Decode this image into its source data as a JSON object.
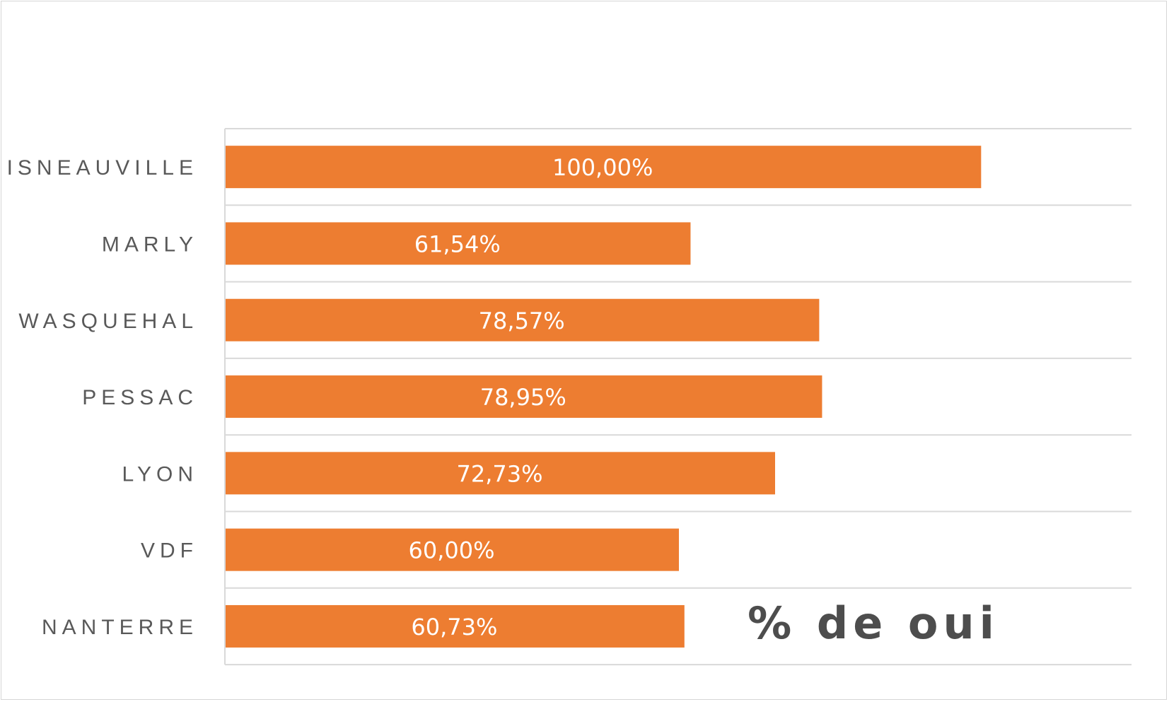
{
  "chart_data": {
    "type": "bar",
    "orientation": "horizontal",
    "categories": [
      "ISNEAUVILLE",
      "MARLY",
      "WASQUEHAL",
      "PESSAC",
      "LYON",
      "VDF",
      "NANTERRE"
    ],
    "values": [
      100.0,
      61.54,
      78.57,
      78.95,
      72.73,
      60.0,
      60.73
    ],
    "value_labels": [
      "100,00%",
      "61,54%",
      "78,57%",
      "78,95%",
      "72,73%",
      "60,00%",
      "60,73%"
    ],
    "annotation": "% de oui",
    "xlim": [
      0,
      120
    ],
    "grid": true,
    "legend": "none"
  },
  "colors": {
    "bar": "#ED7D31",
    "gridline": "#d9d9d9",
    "axis": "#d9d9d9",
    "category_text": "#595959",
    "value_text": "#ffffff",
    "annotation_text": "#4d4d4d"
  }
}
